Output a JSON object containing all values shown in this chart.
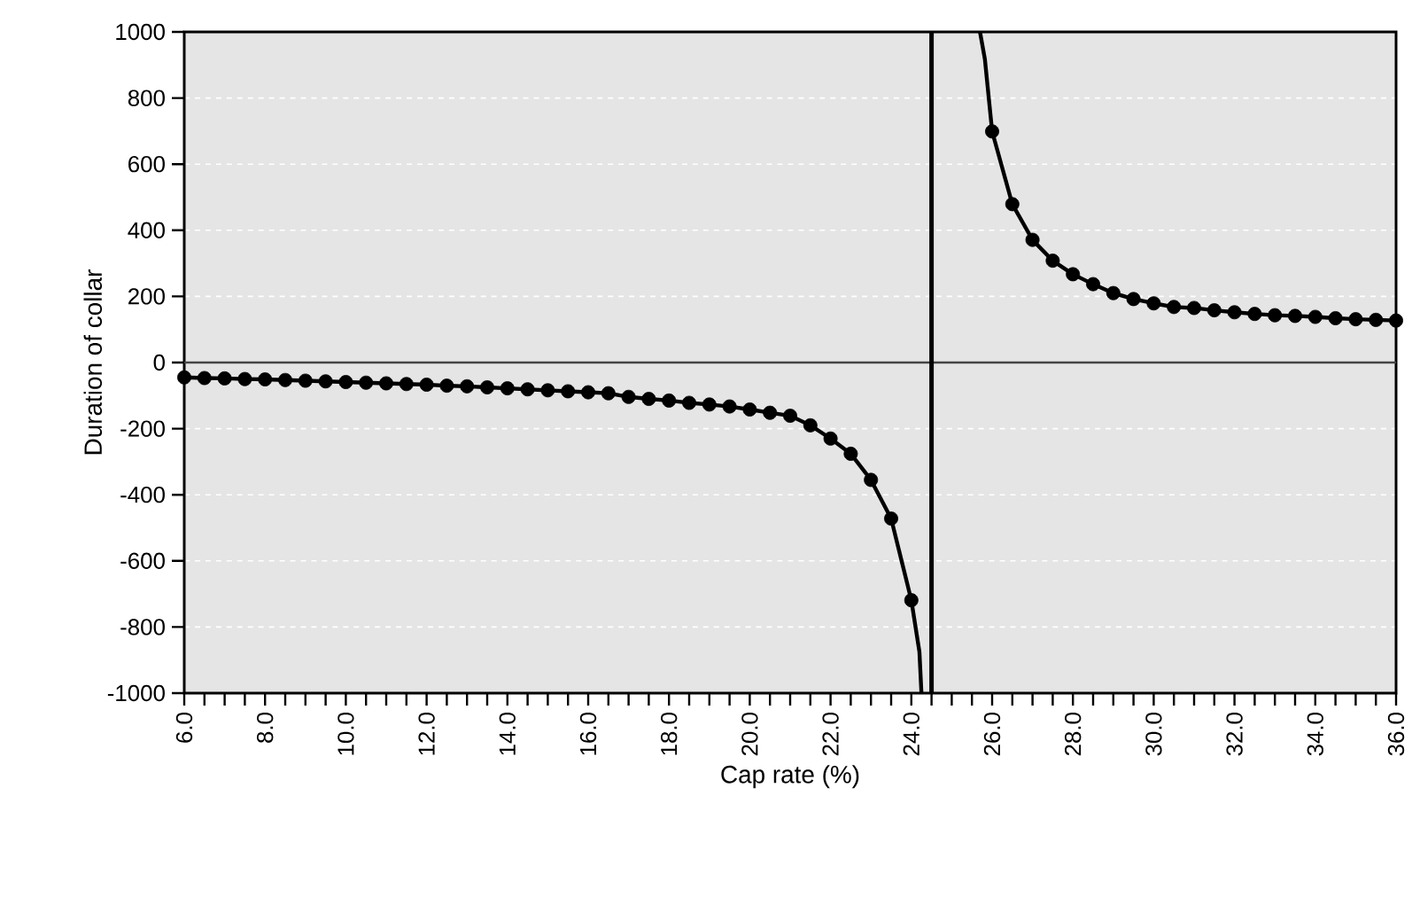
{
  "chart_data": {
    "type": "line",
    "xlabel": "Cap rate (%)",
    "ylabel": "Duration of collar",
    "xlim": [
      6,
      36
    ],
    "ylim": [
      -1000,
      1000
    ],
    "xticks": [
      {
        "value": 6,
        "label": "6.0"
      },
      {
        "value": 6.5,
        "label": null
      },
      {
        "value": 7,
        "label": null
      },
      {
        "value": 7.5,
        "label": null
      },
      {
        "value": 8,
        "label": "8.0"
      },
      {
        "value": 8.5,
        "label": null
      },
      {
        "value": 9,
        "label": null
      },
      {
        "value": 9.5,
        "label": null
      },
      {
        "value": 10,
        "label": "10.0"
      },
      {
        "value": 10.5,
        "label": null
      },
      {
        "value": 11,
        "label": null
      },
      {
        "value": 11.5,
        "label": null
      },
      {
        "value": 12,
        "label": "12.0"
      },
      {
        "value": 12.5,
        "label": null
      },
      {
        "value": 13,
        "label": null
      },
      {
        "value": 13.5,
        "label": null
      },
      {
        "value": 14,
        "label": "14.0"
      },
      {
        "value": 14.5,
        "label": null
      },
      {
        "value": 15,
        "label": null
      },
      {
        "value": 15.5,
        "label": null
      },
      {
        "value": 16,
        "label": "16.0"
      },
      {
        "value": 16.5,
        "label": null
      },
      {
        "value": 17,
        "label": null
      },
      {
        "value": 17.5,
        "label": null
      },
      {
        "value": 18,
        "label": "18.0"
      },
      {
        "value": 18.5,
        "label": null
      },
      {
        "value": 19,
        "label": null
      },
      {
        "value": 19.5,
        "label": null
      },
      {
        "value": 20,
        "label": "20.0"
      },
      {
        "value": 20.5,
        "label": null
      },
      {
        "value": 21,
        "label": null
      },
      {
        "value": 21.5,
        "label": null
      },
      {
        "value": 22,
        "label": "22.0"
      },
      {
        "value": 22.5,
        "label": null
      },
      {
        "value": 23,
        "label": null
      },
      {
        "value": 23.5,
        "label": null
      },
      {
        "value": 24,
        "label": "24.0"
      },
      {
        "value": 24.5,
        "label": null
      },
      {
        "value": 25,
        "label": null
      },
      {
        "value": 25.5,
        "label": null
      },
      {
        "value": 26,
        "label": "26.0"
      },
      {
        "value": 26.5,
        "label": null
      },
      {
        "value": 27,
        "label": null
      },
      {
        "value": 27.5,
        "label": null
      },
      {
        "value": 28,
        "label": "28.0"
      },
      {
        "value": 28.5,
        "label": null
      },
      {
        "value": 29,
        "label": null
      },
      {
        "value": 29.5,
        "label": null
      },
      {
        "value": 30,
        "label": "30.0"
      },
      {
        "value": 30.5,
        "label": null
      },
      {
        "value": 31,
        "label": null
      },
      {
        "value": 31.5,
        "label": null
      },
      {
        "value": 32,
        "label": "32.0"
      },
      {
        "value": 32.5,
        "label": null
      },
      {
        "value": 33,
        "label": null
      },
      {
        "value": 33.5,
        "label": null
      },
      {
        "value": 34,
        "label": "34.0"
      },
      {
        "value": 34.5,
        "label": null
      },
      {
        "value": 35,
        "label": null
      },
      {
        "value": 35.5,
        "label": null
      },
      {
        "value": 36,
        "label": "36.0"
      }
    ],
    "yticks": [
      -1000,
      -800,
      -600,
      -400,
      -200,
      0,
      200,
      400,
      600,
      800,
      1000
    ],
    "grid": "y",
    "ref_lines": [
      {
        "axis": "y",
        "value": 0,
        "color": "#444444"
      },
      {
        "axis": "x",
        "value": 24.5,
        "color": "#000000"
      }
    ],
    "series": [
      {
        "color": "#000000",
        "marker": "none",
        "line_style": "solid",
        "x": [
          6,
          6.5,
          7,
          7.5,
          8,
          8.5,
          9,
          9.5,
          10,
          10.5,
          11,
          11.5,
          12,
          12.5,
          13,
          13.5,
          14,
          14.5,
          15,
          15.5,
          16,
          16.5,
          17,
          17.5,
          18,
          18.5,
          19,
          19.5,
          20,
          20.5,
          21,
          21.5,
          22,
          22.5,
          23,
          23.5,
          24,
          24.2,
          24.25,
          24.5,
          25.7,
          25.82,
          26,
          26.5,
          27,
          27.5,
          28,
          28.5,
          29,
          29.5,
          30,
          30.5,
          31,
          31.5,
          32,
          32.5,
          33,
          33.5,
          34,
          34.5,
          35,
          35.5,
          36
        ],
        "values": [
          -45,
          -47,
          -48,
          -50,
          -51,
          -53,
          -55,
          -57,
          -59,
          -61,
          -63,
          -65,
          -67,
          -70,
          -72,
          -75,
          -78,
          -81,
          -84,
          -87,
          -90,
          -93,
          -104,
          -110,
          -115,
          -122,
          -127,
          -133,
          -142,
          -152,
          -161,
          -190,
          -230,
          -276,
          -355,
          -472,
          -719,
          -875,
          -1000,
          null,
          1000,
          918,
          699,
          479,
          371,
          308,
          267,
          237,
          210,
          192,
          179,
          168,
          165,
          158,
          152,
          147,
          143,
          141,
          138,
          134,
          131,
          129,
          127
        ]
      },
      {
        "type": "scatter",
        "color": "#000000",
        "marker": "circle",
        "x": [
          6,
          6.5,
          7,
          7.5,
          8,
          8.5,
          9,
          9.5,
          10,
          10.5,
          11,
          11.5,
          12,
          12.5,
          13,
          13.5,
          14,
          14.5,
          15,
          15.5,
          16,
          16.5,
          17,
          17.5,
          18,
          18.5,
          19,
          19.5,
          20,
          20.5,
          21,
          21.5,
          22,
          22.5,
          23,
          23.5,
          24,
          26,
          26.5,
          27,
          27.5,
          28,
          28.5,
          29,
          29.5,
          30,
          30.5,
          31,
          31.5,
          32,
          32.5,
          33,
          33.5,
          34,
          34.5,
          35,
          35.5,
          36
        ],
        "values": [
          -45,
          -47,
          -48,
          -50,
          -51,
          -53,
          -55,
          -57,
          -59,
          -61,
          -63,
          -65,
          -67,
          -70,
          -72,
          -75,
          -78,
          -81,
          -84,
          -87,
          -90,
          -93,
          -104,
          -110,
          -115,
          -122,
          -127,
          -133,
          -142,
          -152,
          -161,
          -190,
          -230,
          -276,
          -355,
          -472,
          -719,
          699,
          479,
          371,
          308,
          267,
          237,
          210,
          192,
          179,
          168,
          165,
          158,
          152,
          147,
          143,
          141,
          138,
          134,
          131,
          129,
          127
        ]
      }
    ]
  }
}
